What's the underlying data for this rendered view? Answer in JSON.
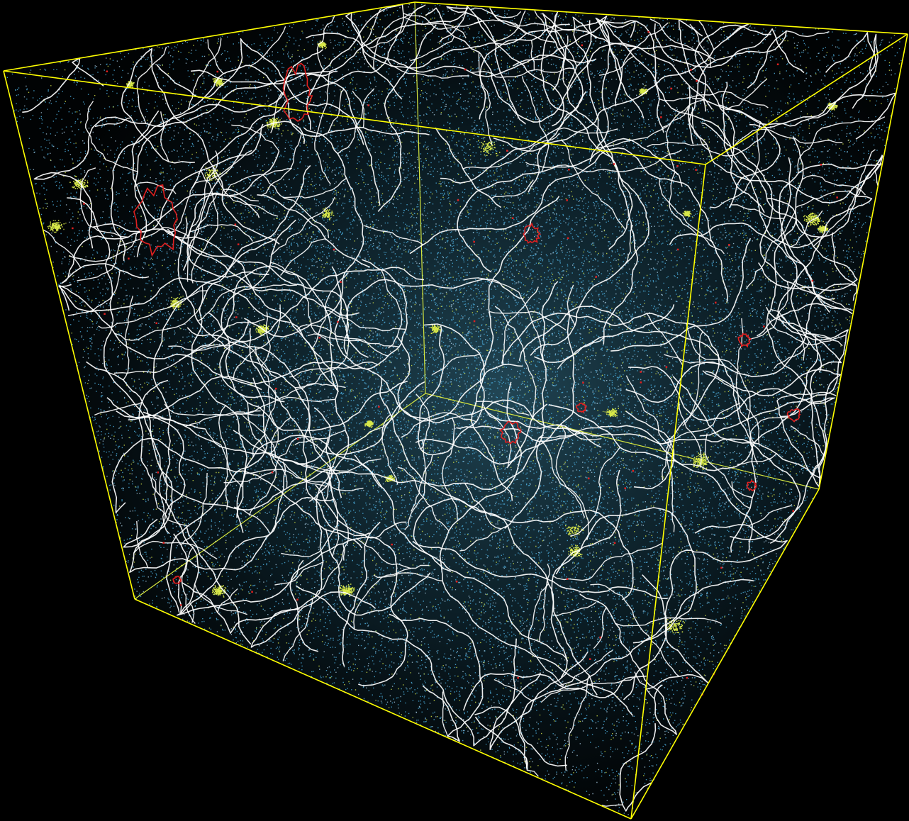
{
  "scene": {
    "subject": "3d-particle-cube-cosmic-filament-network",
    "colors": {
      "background": "#000000",
      "box_edges": "#ffff00",
      "box_edges_hidden": "#d7e840",
      "particles_blue": "#4aa8d6",
      "particles_light": "#bfe6ff",
      "particles_yellow": "#d7e84a",
      "filaments": "#ffffff",
      "loops": "#e02020"
    },
    "counts": {
      "particles": 26000,
      "yellow_clumps": 26,
      "filaments": 120,
      "red_loops": 9
    },
    "seed": 20240611
  }
}
